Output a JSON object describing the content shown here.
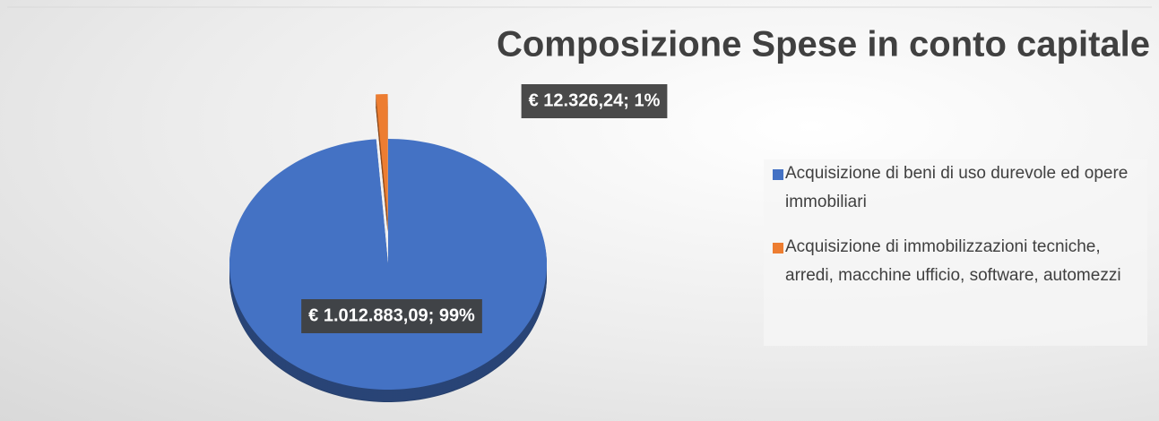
{
  "chart_data": {
    "type": "pie",
    "title": "Composizione Spese in conto capitale",
    "categories": [
      "Acquisizione di beni di uso durevole ed opere immobiliari",
      "Acquisizione di immobilizzazioni tecniche, arredi, macchine ufficio, software, automezzi"
    ],
    "values": [
      1012883.09,
      12326.24
    ],
    "value_labels": [
      "€ 1.012.883,09; 99%",
      "€ 12.326,24; 1%"
    ],
    "colors": [
      "#4472c4",
      "#ed7d31"
    ],
    "legend": "right"
  }
}
